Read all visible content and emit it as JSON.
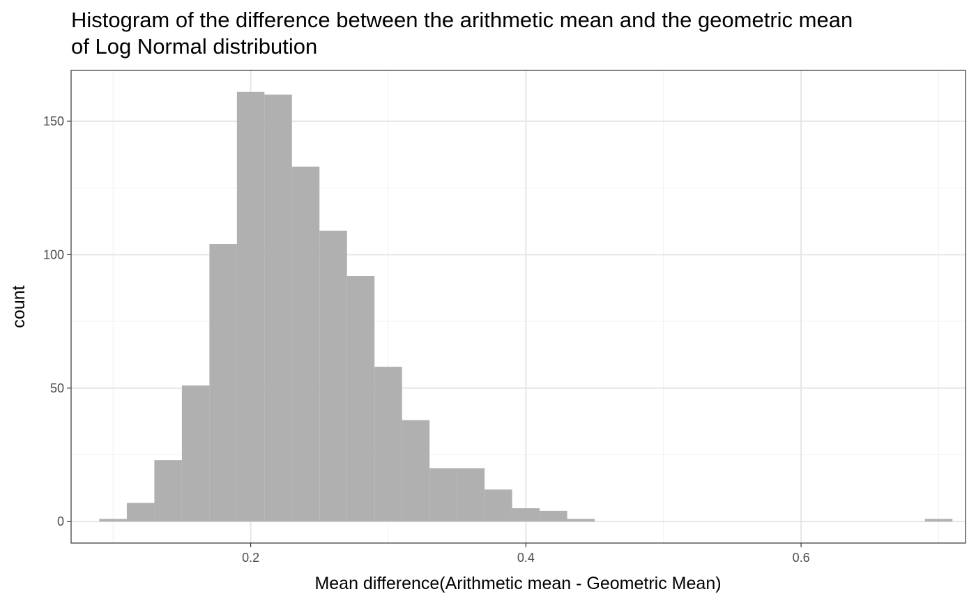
{
  "chart_data": {
    "type": "bar",
    "title_lines": [
      "Histogram of the difference between the arithmetic mean and the geometric mean",
      "of Log Normal distribution"
    ],
    "xlabel": "Mean difference(Arithmetic mean - Geometric Mean)",
    "ylabel": "count",
    "xlim": [
      0.0695,
      0.7195
    ],
    "ylim": [
      -8.05,
      169.05
    ],
    "x_ticks": [
      0.2,
      0.4,
      0.6
    ],
    "x_tick_labels": [
      "0.2",
      "0.4",
      "0.6"
    ],
    "y_ticks": [
      0,
      50,
      100,
      150
    ],
    "y_tick_labels": [
      "0",
      "50",
      "100",
      "150"
    ],
    "x_minor_ticks": [
      0.1,
      0.3,
      0.5,
      0.7
    ],
    "y_minor_ticks": [
      25,
      75,
      125
    ],
    "grid": true,
    "bin_width": 0.02,
    "bins": [
      {
        "x0": 0.09,
        "x1": 0.11,
        "count": 1
      },
      {
        "x0": 0.11,
        "x1": 0.13,
        "count": 7
      },
      {
        "x0": 0.13,
        "x1": 0.15,
        "count": 23
      },
      {
        "x0": 0.15,
        "x1": 0.17,
        "count": 51
      },
      {
        "x0": 0.17,
        "x1": 0.19,
        "count": 104
      },
      {
        "x0": 0.19,
        "x1": 0.21,
        "count": 161
      },
      {
        "x0": 0.21,
        "x1": 0.23,
        "count": 160
      },
      {
        "x0": 0.23,
        "x1": 0.25,
        "count": 133
      },
      {
        "x0": 0.25,
        "x1": 0.27,
        "count": 109
      },
      {
        "x0": 0.27,
        "x1": 0.29,
        "count": 92
      },
      {
        "x0": 0.29,
        "x1": 0.31,
        "count": 58
      },
      {
        "x0": 0.31,
        "x1": 0.33,
        "count": 38
      },
      {
        "x0": 0.33,
        "x1": 0.35,
        "count": 20
      },
      {
        "x0": 0.35,
        "x1": 0.37,
        "count": 20
      },
      {
        "x0": 0.37,
        "x1": 0.39,
        "count": 12
      },
      {
        "x0": 0.39,
        "x1": 0.41,
        "count": 5
      },
      {
        "x0": 0.41,
        "x1": 0.43,
        "count": 4
      },
      {
        "x0": 0.43,
        "x1": 0.45,
        "count": 1
      },
      {
        "x0": 0.45,
        "x1": 0.47,
        "count": 0
      },
      {
        "x0": 0.47,
        "x1": 0.49,
        "count": 0
      },
      {
        "x0": 0.49,
        "x1": 0.51,
        "count": 0
      },
      {
        "x0": 0.51,
        "x1": 0.53,
        "count": 0
      },
      {
        "x0": 0.53,
        "x1": 0.55,
        "count": 0
      },
      {
        "x0": 0.55,
        "x1": 0.57,
        "count": 0
      },
      {
        "x0": 0.57,
        "x1": 0.59,
        "count": 0
      },
      {
        "x0": 0.59,
        "x1": 0.61,
        "count": 0
      },
      {
        "x0": 0.61,
        "x1": 0.63,
        "count": 0
      },
      {
        "x0": 0.63,
        "x1": 0.65,
        "count": 0
      },
      {
        "x0": 0.65,
        "x1": 0.67,
        "count": 0
      },
      {
        "x0": 0.67,
        "x1": 0.69,
        "count": 0
      },
      {
        "x0": 0.69,
        "x1": 0.71,
        "count": 1
      }
    ],
    "colors": {
      "bar_fill": "#b0b0b0",
      "panel_border": "#333333",
      "major_grid": "#e6e6e6",
      "minor_grid": "#f0f0f0",
      "tick_text": "#4d4d4d",
      "text": "#000000"
    }
  }
}
